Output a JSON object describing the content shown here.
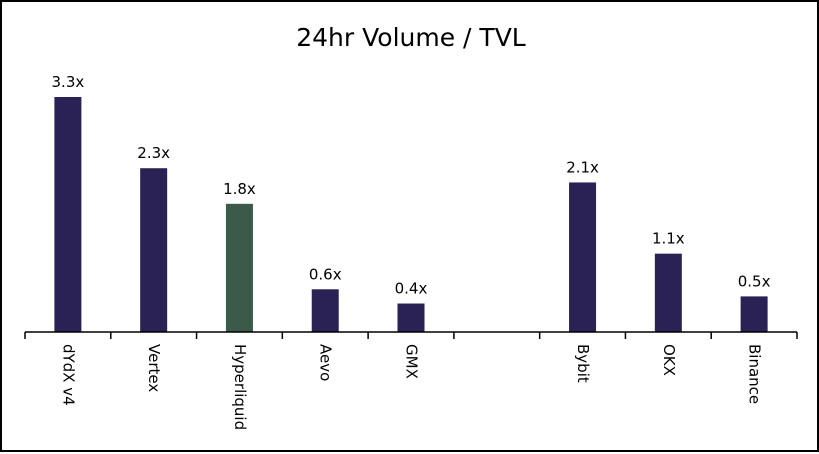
{
  "chart_data": {
    "type": "bar",
    "title": "24hr Volume / TVL",
    "xlabel": "",
    "ylabel": "",
    "ylim": [
      0,
      3.3
    ],
    "grid": false,
    "legend": "none",
    "categories": [
      "dYdX v4",
      "Vertex",
      "Hyperliquid",
      "Aevo",
      "GMX",
      "",
      "Bybit",
      "OKX",
      "Binance"
    ],
    "values": [
      3.3,
      2.3,
      1.8,
      0.6,
      0.4,
      null,
      2.1,
      1.1,
      0.5
    ],
    "labels": [
      "3.3x",
      "2.3x",
      "1.8x",
      "0.6x",
      "0.4x",
      "",
      "2.1x",
      "1.1x",
      "0.5x"
    ],
    "highlight_index": 2,
    "colors": {
      "bar": "#2a2255",
      "highlight": "#3b5a4a",
      "axis": "#000000"
    }
  }
}
